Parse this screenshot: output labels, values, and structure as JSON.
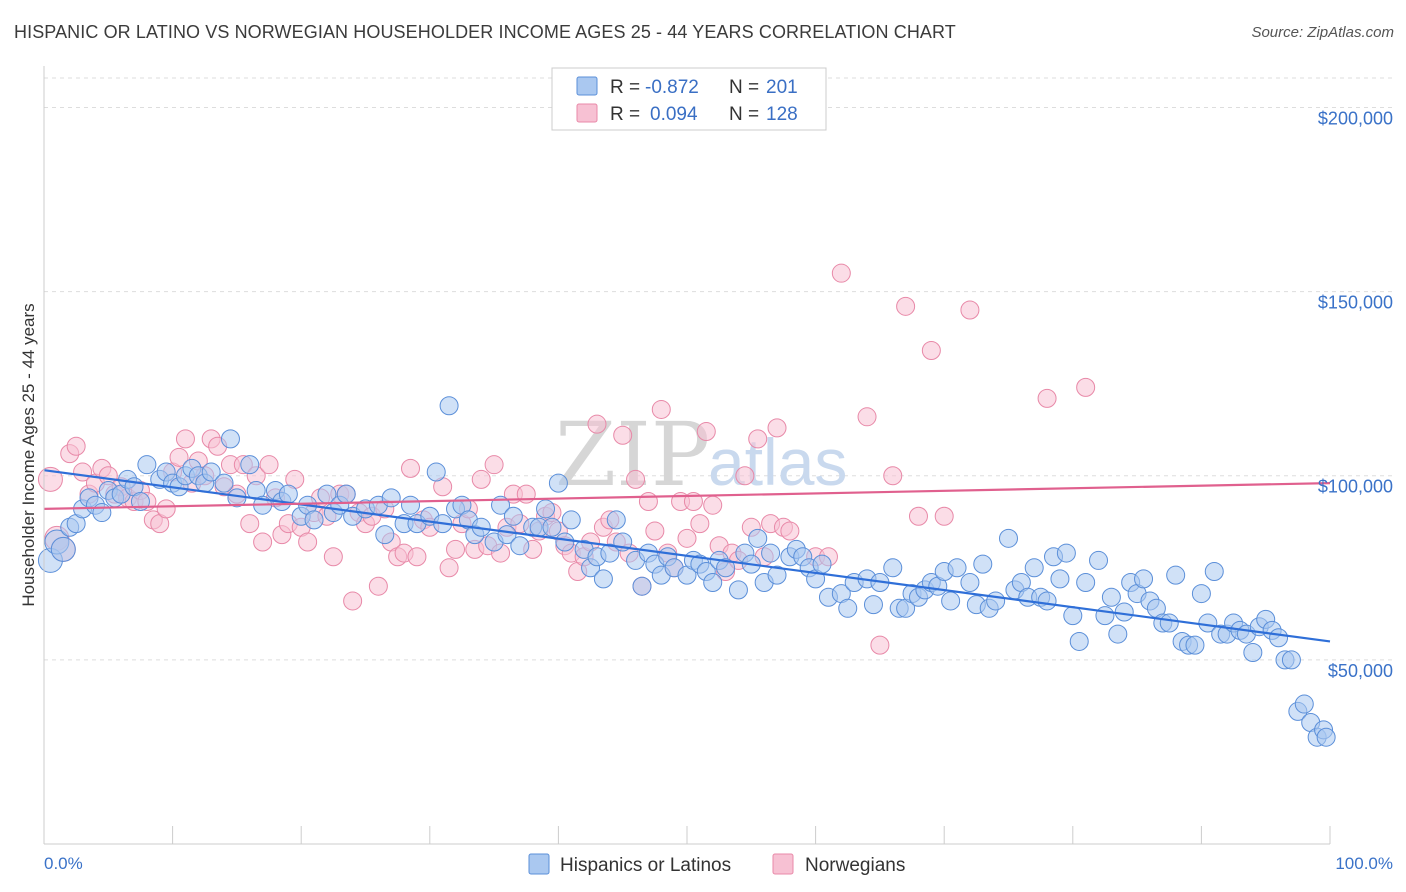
{
  "title": "HISPANIC OR LATINO VS NORWEGIAN HOUSEHOLDER INCOME AGES 25 - 44 YEARS CORRELATION CHART",
  "source": "Source: ZipAtlas.com",
  "watermark": {
    "zip": "ZIP",
    "atlas": "atlas"
  },
  "stats": {
    "r_label": "R =",
    "n_label": "N =",
    "rows": [
      {
        "r": "-0.872",
        "n": "201",
        "color": "#5b8fd9"
      },
      {
        "r": " 0.094",
        "n": "128",
        "color": "#e889a8"
      }
    ]
  },
  "chart_data": {
    "type": "scatter",
    "xlabel": "",
    "ylabel": "Householder Income Ages 25 - 44 years",
    "x_tick_labels": [
      "0.0%",
      "100.0%"
    ],
    "y_tick_labels": [
      "$50,000",
      "$100,000",
      "$150,000",
      "$200,000"
    ],
    "y_ticks": [
      50000,
      100000,
      150000,
      200000
    ],
    "xlim": [
      0,
      100
    ],
    "ylim": [
      0,
      208000
    ],
    "grid": true,
    "legend_position": "bottom-center",
    "series": [
      {
        "name": "Hispanics or Latinos",
        "color": "#5b8fd9",
        "fill": "#aac8f0",
        "trend": {
          "x": [
            0,
            100
          ],
          "y": [
            101500,
            55000
          ]
        },
        "points": [
          [
            0.5,
            77000
          ],
          [
            1,
            82000
          ],
          [
            1.5,
            80000
          ],
          [
            2,
            86000
          ],
          [
            2.5,
            87000
          ],
          [
            3,
            91000
          ],
          [
            3.5,
            94000
          ],
          [
            4,
            92000
          ],
          [
            4.5,
            90000
          ],
          [
            5,
            96000
          ],
          [
            5.5,
            94000
          ],
          [
            6,
            95000
          ],
          [
            6.5,
            99000
          ],
          [
            7,
            97000
          ],
          [
            7.5,
            93000
          ],
          [
            8,
            103000
          ],
          [
            9,
            99000
          ],
          [
            9.5,
            101000
          ],
          [
            10,
            98000
          ],
          [
            10.5,
            97000
          ],
          [
            11,
            100000
          ],
          [
            11.5,
            102000
          ],
          [
            12,
            100000
          ],
          [
            12.5,
            98000
          ],
          [
            13,
            101000
          ],
          [
            14,
            98000
          ],
          [
            14.5,
            110000
          ],
          [
            15,
            94000
          ],
          [
            16,
            103000
          ],
          [
            16.5,
            96000
          ],
          [
            17,
            92000
          ],
          [
            18,
            96000
          ],
          [
            18.5,
            93000
          ],
          [
            19,
            95000
          ],
          [
            20,
            89000
          ],
          [
            20.5,
            92000
          ],
          [
            21,
            88000
          ],
          [
            22,
            95000
          ],
          [
            22.5,
            90000
          ],
          [
            23,
            92000
          ],
          [
            23.5,
            95000
          ],
          [
            24,
            89000
          ],
          [
            25,
            91000
          ],
          [
            26,
            92000
          ],
          [
            26.5,
            84000
          ],
          [
            27,
            94000
          ],
          [
            28,
            87000
          ],
          [
            28.5,
            92000
          ],
          [
            29,
            87000
          ],
          [
            30,
            89000
          ],
          [
            30.5,
            101000
          ],
          [
            31,
            87000
          ],
          [
            31.5,
            119000
          ],
          [
            32,
            91000
          ],
          [
            32.5,
            92000
          ],
          [
            33,
            88000
          ],
          [
            33.5,
            84000
          ],
          [
            34,
            86000
          ],
          [
            35,
            82000
          ],
          [
            35.5,
            92000
          ],
          [
            36,
            84000
          ],
          [
            36.5,
            89000
          ],
          [
            37,
            81000
          ],
          [
            38,
            86000
          ],
          [
            38.5,
            86000
          ],
          [
            39,
            91000
          ],
          [
            39.5,
            86000
          ],
          [
            40,
            98000
          ],
          [
            40.5,
            82000
          ],
          [
            41,
            88000
          ],
          [
            42,
            80000
          ],
          [
            42.5,
            75000
          ],
          [
            43,
            78000
          ],
          [
            43.5,
            72000
          ],
          [
            44,
            79000
          ],
          [
            44.5,
            88000
          ],
          [
            45,
            82000
          ],
          [
            46,
            77000
          ],
          [
            46.5,
            70000
          ],
          [
            47,
            79000
          ],
          [
            47.5,
            76000
          ],
          [
            48,
            73000
          ],
          [
            48.5,
            78000
          ],
          [
            49,
            75000
          ],
          [
            50,
            73000
          ],
          [
            50.5,
            77000
          ],
          [
            51,
            76000
          ],
          [
            51.5,
            74000
          ],
          [
            52,
            71000
          ],
          [
            52.5,
            77000
          ],
          [
            53,
            75000
          ],
          [
            54,
            69000
          ],
          [
            54.5,
            79000
          ],
          [
            55,
            76000
          ],
          [
            55.5,
            83000
          ],
          [
            56,
            71000
          ],
          [
            56.5,
            79000
          ],
          [
            57,
            73000
          ],
          [
            58,
            78000
          ],
          [
            58.5,
            80000
          ],
          [
            59,
            78000
          ],
          [
            59.5,
            75000
          ],
          [
            60,
            72000
          ],
          [
            60.5,
            76000
          ],
          [
            61,
            67000
          ],
          [
            62,
            68000
          ],
          [
            62.5,
            64000
          ],
          [
            63,
            71000
          ],
          [
            64,
            72000
          ],
          [
            64.5,
            65000
          ],
          [
            65,
            71000
          ],
          [
            66,
            75000
          ],
          [
            66.5,
            64000
          ],
          [
            67,
            64000
          ],
          [
            67.5,
            68000
          ],
          [
            68,
            67000
          ],
          [
            68.5,
            69000
          ],
          [
            69,
            71000
          ],
          [
            69.5,
            70000
          ],
          [
            70,
            74000
          ],
          [
            70.5,
            66000
          ],
          [
            71,
            75000
          ],
          [
            72,
            71000
          ],
          [
            72.5,
            65000
          ],
          [
            73,
            76000
          ],
          [
            73.5,
            64000
          ],
          [
            74,
            66000
          ],
          [
            75,
            83000
          ],
          [
            75.5,
            69000
          ],
          [
            76,
            71000
          ],
          [
            76.5,
            67000
          ],
          [
            77,
            75000
          ],
          [
            77.5,
            67000
          ],
          [
            78,
            66000
          ],
          [
            78.5,
            78000
          ],
          [
            79,
            72000
          ],
          [
            79.5,
            79000
          ],
          [
            80,
            62000
          ],
          [
            80.5,
            55000
          ],
          [
            81,
            71000
          ],
          [
            82,
            77000
          ],
          [
            82.5,
            62000
          ],
          [
            83,
            67000
          ],
          [
            83.5,
            57000
          ],
          [
            84,
            63000
          ],
          [
            84.5,
            71000
          ],
          [
            85,
            68000
          ],
          [
            85.5,
            72000
          ],
          [
            86,
            66000
          ],
          [
            86.5,
            64000
          ],
          [
            87,
            60000
          ],
          [
            87.5,
            60000
          ],
          [
            88,
            73000
          ],
          [
            88.5,
            55000
          ],
          [
            89,
            54000
          ],
          [
            89.5,
            54000
          ],
          [
            90,
            68000
          ],
          [
            90.5,
            60000
          ],
          [
            91,
            74000
          ],
          [
            91.5,
            57000
          ],
          [
            92,
            57000
          ],
          [
            92.5,
            60000
          ],
          [
            93,
            58000
          ],
          [
            93.5,
            57000
          ],
          [
            94,
            52000
          ],
          [
            94.5,
            59000
          ],
          [
            95,
            61000
          ],
          [
            95.5,
            58000
          ],
          [
            96,
            56000
          ],
          [
            96.5,
            50000
          ],
          [
            97,
            50000
          ],
          [
            97.5,
            36000
          ],
          [
            98,
            38000
          ],
          [
            98.5,
            33000
          ],
          [
            99,
            29000
          ],
          [
            99.5,
            31000
          ],
          [
            99.7,
            29000
          ]
        ]
      },
      {
        "name": "Norwegians",
        "color": "#e889a8",
        "fill": "#f7c1d3",
        "trend": {
          "x": [
            0,
            100
          ],
          "y": [
            91000,
            98000
          ]
        },
        "points": [
          [
            0.5,
            99000
          ],
          [
            1,
            83000
          ],
          [
            1.5,
            80000
          ],
          [
            2,
            106000
          ],
          [
            2.5,
            108000
          ],
          [
            3,
            101000
          ],
          [
            3.5,
            95000
          ],
          [
            4,
            98000
          ],
          [
            4.5,
            102000
          ],
          [
            5,
            100000
          ],
          [
            5.5,
            95000
          ],
          [
            6,
            97000
          ],
          [
            6.5,
            94000
          ],
          [
            7,
            93000
          ],
          [
            7.5,
            96000
          ],
          [
            8,
            93000
          ],
          [
            8.5,
            88000
          ],
          [
            9,
            87000
          ],
          [
            9.5,
            91000
          ],
          [
            10,
            101000
          ],
          [
            10.5,
            105000
          ],
          [
            11,
            110000
          ],
          [
            11.5,
            98000
          ],
          [
            12,
            104000
          ],
          [
            12.5,
            100000
          ],
          [
            13,
            110000
          ],
          [
            13.5,
            108000
          ],
          [
            14,
            97000
          ],
          [
            14.5,
            103000
          ],
          [
            15,
            95000
          ],
          [
            15.5,
            103000
          ],
          [
            16,
            87000
          ],
          [
            16.5,
            100000
          ],
          [
            17,
            82000
          ],
          [
            17.5,
            103000
          ],
          [
            18,
            94000
          ],
          [
            18.5,
            84000
          ],
          [
            19,
            87000
          ],
          [
            19.5,
            99000
          ],
          [
            20,
            86000
          ],
          [
            20.5,
            82000
          ],
          [
            21,
            90000
          ],
          [
            21.5,
            94000
          ],
          [
            22,
            89000
          ],
          [
            22.5,
            78000
          ],
          [
            23,
            95000
          ],
          [
            23.5,
            95000
          ],
          [
            24,
            66000
          ],
          [
            24.5,
            90000
          ],
          [
            25,
            87000
          ],
          [
            25.5,
            89000
          ],
          [
            26,
            70000
          ],
          [
            26.5,
            91000
          ],
          [
            27,
            82000
          ],
          [
            27.5,
            78000
          ],
          [
            28,
            79000
          ],
          [
            28.5,
            102000
          ],
          [
            29,
            78000
          ],
          [
            29.5,
            88000
          ],
          [
            30,
            86000
          ],
          [
            31,
            97000
          ],
          [
            31.5,
            75000
          ],
          [
            32,
            80000
          ],
          [
            32.5,
            87000
          ],
          [
            33,
            91000
          ],
          [
            33.5,
            80000
          ],
          [
            34,
            99000
          ],
          [
            34.5,
            81000
          ],
          [
            35,
            103000
          ],
          [
            35.5,
            79000
          ],
          [
            36,
            86000
          ],
          [
            36.5,
            95000
          ],
          [
            37,
            87000
          ],
          [
            37.5,
            95000
          ],
          [
            38,
            80000
          ],
          [
            38.5,
            85000
          ],
          [
            39,
            89000
          ],
          [
            39.5,
            90000
          ],
          [
            40,
            85000
          ],
          [
            40.5,
            81000
          ],
          [
            41,
            79000
          ],
          [
            41.5,
            74000
          ],
          [
            42,
            78000
          ],
          [
            42.5,
            82000
          ],
          [
            43,
            114000
          ],
          [
            43.5,
            86000
          ],
          [
            44,
            88000
          ],
          [
            44.5,
            82000
          ],
          [
            45,
            111000
          ],
          [
            45.5,
            79000
          ],
          [
            46,
            99000
          ],
          [
            46.5,
            70000
          ],
          [
            47,
            93000
          ],
          [
            47.5,
            85000
          ],
          [
            48,
            118000
          ],
          [
            48.5,
            79000
          ],
          [
            49,
            75000
          ],
          [
            49.5,
            93000
          ],
          [
            50,
            83000
          ],
          [
            50.5,
            93000
          ],
          [
            51,
            87000
          ],
          [
            51.5,
            112000
          ],
          [
            52,
            92000
          ],
          [
            52.5,
            81000
          ],
          [
            53,
            74000
          ],
          [
            53.5,
            79000
          ],
          [
            54,
            77000
          ],
          [
            54.5,
            100000
          ],
          [
            55,
            86000
          ],
          [
            55.5,
            110000
          ],
          [
            56,
            78000
          ],
          [
            56.5,
            87000
          ],
          [
            57,
            113000
          ],
          [
            57.5,
            86000
          ],
          [
            58,
            85000
          ],
          [
            60,
            78000
          ],
          [
            61,
            78000
          ],
          [
            62,
            155000
          ],
          [
            64,
            116000
          ],
          [
            65,
            54000
          ],
          [
            66,
            100000
          ],
          [
            67,
            146000
          ],
          [
            68,
            89000
          ],
          [
            69,
            134000
          ],
          [
            70,
            89000
          ],
          [
            72,
            145000
          ],
          [
            78,
            121000
          ],
          [
            81,
            124000
          ]
        ]
      }
    ]
  }
}
